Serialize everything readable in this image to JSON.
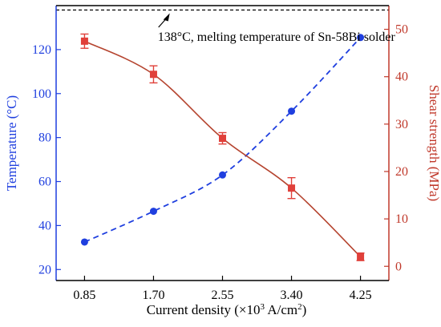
{
  "chart_data": {
    "type": "line",
    "xlabel_main": "Current density (×10",
    "xlabel_sup": "3",
    "xlabel_mid": " A/cm",
    "xlabel_sup2": "2",
    "xlabel_end": ")",
    "ylabel_left": "Temperature (°C)",
    "ylabel_right": "Shear strength (MPa)",
    "categories": [
      "0.85",
      "1.70",
      "2.55",
      "3.40",
      "4.25"
    ],
    "x": [
      0.85,
      1.7,
      2.55,
      3.4,
      4.25
    ],
    "xlim": [
      0.5,
      4.6
    ],
    "ylim_left": [
      15,
      140
    ],
    "ylim_right": [
      -3,
      55
    ],
    "yticks_left": [
      20,
      40,
      60,
      80,
      100,
      120
    ],
    "yticks_right": [
      0,
      10,
      20,
      30,
      40,
      50
    ],
    "series": [
      {
        "axis": "left",
        "marker": "circle",
        "line": "dashed",
        "color": "#1f3fdf",
        "values": [
          32.5,
          46.5,
          63,
          92,
          125.5
        ]
      },
      {
        "axis": "right",
        "marker": "square",
        "line": "solid",
        "color": "#b5442f",
        "marker_color": "#e0403a",
        "values": [
          47.5,
          40.5,
          27,
          16.5,
          2
        ],
        "errors": [
          1.5,
          1.8,
          1.2,
          2.2,
          0.8
        ]
      }
    ],
    "reference_line": {
      "axis": "left",
      "value": 138,
      "style": "dashed"
    },
    "annotation": "138°C, melting temperature of Sn-58Bi solder",
    "colors": {
      "left_axis": "#1f3fdf",
      "right_axis": "#c0392b",
      "frame": "#000000"
    }
  }
}
